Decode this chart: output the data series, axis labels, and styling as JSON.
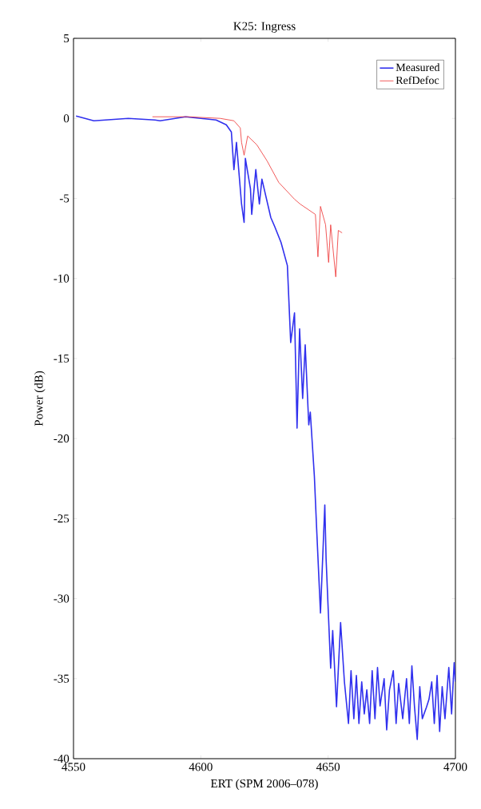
{
  "chart_data": {
    "type": "line",
    "title": "K25: Ingress",
    "xlabel": "ERT (SPM 2006–078)",
    "ylabel": "Power (dB)",
    "xlim": [
      4550,
      4700
    ],
    "ylim": [
      -40,
      5
    ],
    "xticks": [
      4550,
      4600,
      4650,
      4700
    ],
    "yticks": [
      -40,
      -35,
      -30,
      -25,
      -20,
      -15,
      -10,
      -5,
      0,
      5
    ],
    "legend": "top right",
    "grid": false,
    "marker": "none",
    "line_style": "solid",
    "series": [
      {
        "name": "Measured",
        "color": "#3030ee",
        "x": [
          4551,
          4558,
          4571.5,
          4582,
          4584,
          4594,
          4606,
          4610,
          4612,
          4613,
          4614,
          4616,
          4617,
          4617.5,
          4619.5,
          4620,
          4621.6,
          4623,
          4624,
          4627.5,
          4629,
          4631.5,
          4634,
          4635.3,
          4636.8,
          4637.8,
          4638.8,
          4640,
          4641,
          4642.4,
          4643,
          4644.6,
          4645.5,
          4647,
          4648.7,
          4649.2,
          4651,
          4651.8,
          4653.3,
          4654.9,
          4656.4,
          4658.0,
          4659.0,
          4660.1,
          4661.1,
          4662.1,
          4663.2,
          4664.2,
          4665.2,
          4666.3,
          4667.3,
          4668.4,
          4669.4,
          4670.4,
          4672.0,
          4673.0,
          4674.1,
          4675.6,
          4676.7,
          4677.7,
          4679.3,
          4680.8,
          4681.9,
          4682.9,
          4683.9,
          4685.0,
          4686.0,
          4687.0,
          4688.6,
          4689.6,
          4690.7,
          4691.7,
          4692.8,
          4693.8,
          4694.8,
          4695.9,
          4697.4,
          4698.5,
          4699.5,
          4700
        ],
        "values": [
          0.15,
          -0.15,
          0,
          -0.1,
          -0.15,
          0.1,
          -0.1,
          -0.4,
          -0.85,
          -3.2,
          -1.5,
          -5.35,
          -6.5,
          -2.5,
          -4.4,
          -6,
          -3.2,
          -5.35,
          -3.8,
          -6.2,
          -6.75,
          -7.75,
          -9.2,
          -14,
          -12.15,
          -19.35,
          -13.15,
          -17.5,
          -14.15,
          -19.15,
          -18.35,
          -22.35,
          -25.65,
          -30.9,
          -24.15,
          -27.5,
          -34.35,
          -32,
          -36.75,
          -31.5,
          -35.2,
          -37.8,
          -34.5,
          -37.5,
          -34.8,
          -37.8,
          -35.2,
          -37.2,
          -35.7,
          -37.8,
          -34.5,
          -37.5,
          -34.3,
          -36.7,
          -35,
          -38.2,
          -35.7,
          -34.5,
          -37.8,
          -35.3,
          -37.5,
          -35,
          -37.8,
          -34.2,
          -36.7,
          -38.8,
          -35.5,
          -37.5,
          -36.8,
          -36.3,
          -35.2,
          -37.8,
          -34.8,
          -38.3,
          -35.5,
          -37.5,
          -34.3,
          -37.2,
          -34,
          -35.2
        ]
      },
      {
        "name": "RefDefoc",
        "color": "#ee3030",
        "x": [
          4581,
          4595,
          4607.6,
          4613,
          4615.5,
          4616,
          4617,
          4618.4,
          4622,
          4626,
          4630.6,
          4636.8,
          4639,
          4645,
          4646,
          4647,
          4649,
          4650.2,
          4651,
          4653,
          4654,
          4655.5
        ],
        "values": [
          0.1,
          0.1,
          0,
          -0.15,
          -0.6,
          -1.5,
          -2.3,
          -1.1,
          -1.65,
          -2.65,
          -4,
          -5.05,
          -5.35,
          -6,
          -8.65,
          -5.5,
          -6.65,
          -9,
          -6.65,
          -9.9,
          -7,
          -7.15
        ]
      }
    ]
  }
}
